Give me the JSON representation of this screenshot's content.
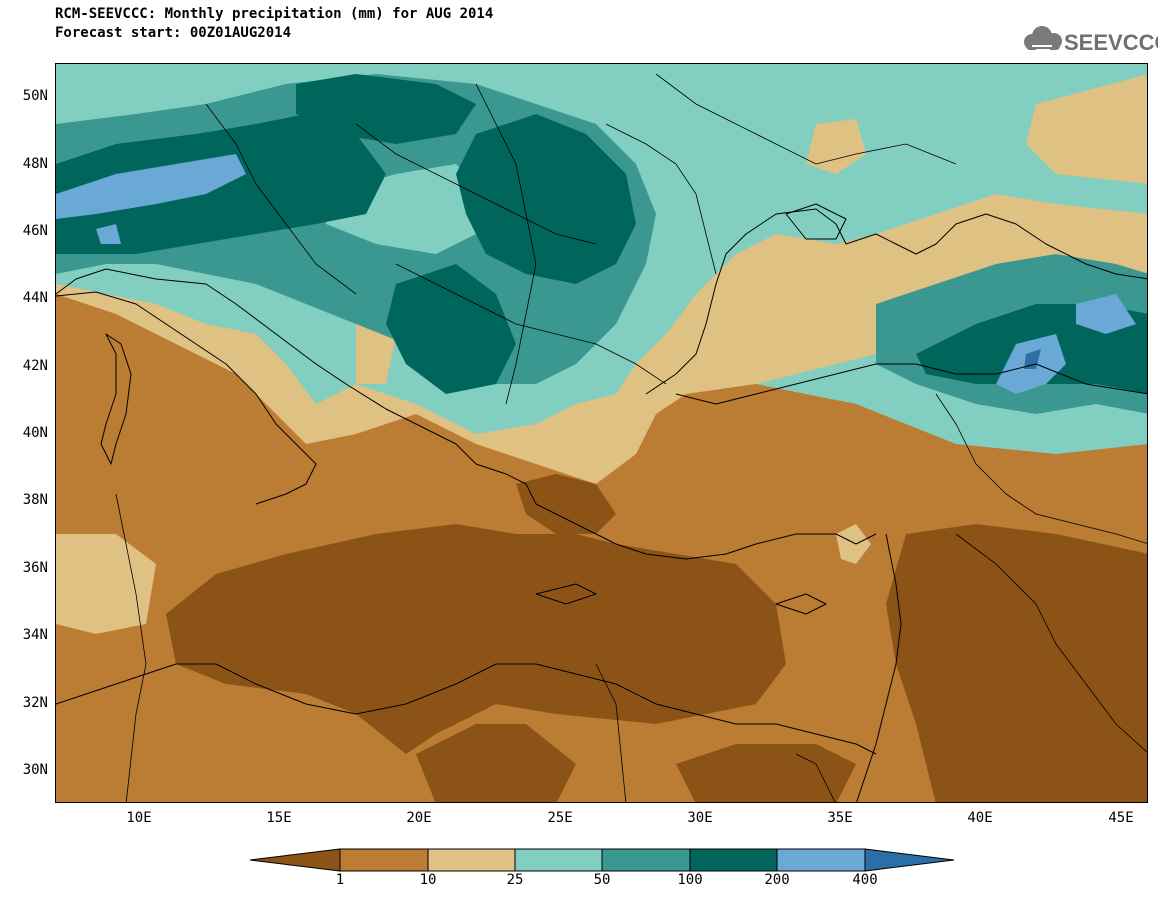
{
  "header": {
    "title": "RCM-SEEVCCC: Monthly precipitation (mm) for AUG 2014",
    "subtitle": "Forecast start: 00Z01AUG2014"
  },
  "logo": {
    "text": "SEEVCCC",
    "icon": "cloud-icon"
  },
  "map": {
    "lat_labels": [
      "50N",
      "48N",
      "46N",
      "44N",
      "42N",
      "40N",
      "38N",
      "36N",
      "34N",
      "32N",
      "30N"
    ],
    "lon_labels": [
      "10E",
      "15E",
      "20E",
      "25E",
      "30E",
      "35E",
      "40E",
      "45E"
    ],
    "lat_range": [
      29,
      51
    ],
    "lon_range": [
      7,
      46
    ]
  },
  "legend": {
    "labels": [
      "1",
      "10",
      "25",
      "50",
      "100",
      "200",
      "400"
    ],
    "colors": [
      "#8b5416",
      "#bb7c34",
      "#dfc183",
      "#82cec1",
      "#3a9890",
      "#00655a",
      "#6aa8d6",
      "#2c6fa6"
    ]
  }
}
